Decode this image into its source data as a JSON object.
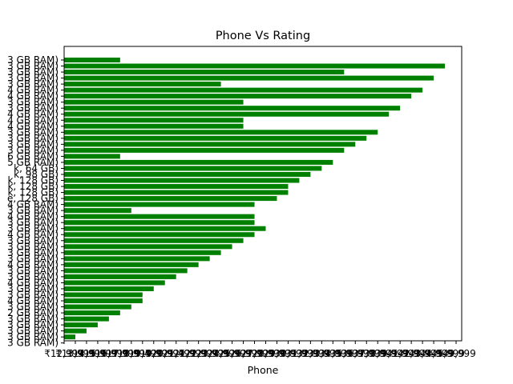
{
  "chart_data": {
    "type": "bar",
    "orientation": "horizontal",
    "title": "Phone Vs Rating",
    "xlabel": "Phone",
    "ylabel": "",
    "bar_color": "#008000",
    "grid": false,
    "y_tick_labels": [
      "3 GB RAM)",
      "3 GB RAM)",
      "3 GB RAM)",
      "3 GB RAM)",
      "3 GB RAM)",
      "4 GB RAM)",
      "4 GB RAM)",
      "3 GB RAM)",
      "3 GB RAM)",
      "4 GB RAM)",
      "4 GB RAM)",
      "4 GB RAM)",
      "3 GB RAM)",
      "3 GB RAM)",
      "3 GB RAM)",
      "3 GB RAM)",
      "6 GB RAM)",
      "5 GB RAM)",
      "k, 64 GB)",
      "k, 98 GB)",
      "k, 128 GB)",
      "k, 128 GB)",
      "k, 128 GB)",
      "e, 128 GB)",
      "4 GB RAM)",
      "3 GB RAM)",
      "4 GB RAM)",
      "3 GB RAM)",
      "3 GB RAM)",
      "4 GB RAM)",
      "3 GB RAM)",
      "3 GB RAM)",
      "3 GB RAM)",
      "3 GB RAM)",
      "4 GB RAM)",
      "3 GB RAM)",
      "3 GB RAM)",
      "4 GB RAM)",
      "3 GB RAM)",
      "3 GB RAM)",
      "4 GB RAM)",
      "3 GB RAM)",
      "2 GB RAM)",
      "3 GB RAM)",
      "3 GB RAM)",
      "3 GB RAM)",
      "3 GB RAM)",
      "3 GB RAM)"
    ],
    "values": [
      5,
      34,
      25,
      33,
      14,
      32,
      31,
      16,
      30,
      29,
      16,
      16,
      28,
      27,
      26,
      25,
      5,
      24,
      23,
      22,
      21,
      20,
      20,
      19,
      17,
      6,
      17,
      17,
      18,
      17,
      16,
      15,
      14,
      13,
      12,
      11,
      10,
      9,
      8,
      7,
      7,
      6,
      5,
      4,
      3,
      2,
      1,
      0
    ],
    "x_tick_labels": [
      "₹12,999",
      "₹13,999",
      "₹14,999",
      "₹15,999",
      "₹16,999",
      "₹17,999",
      "₹18,999",
      "₹19,499",
      "₹19,999",
      "₹20,999",
      "₹21,499",
      "₹21,999",
      "₹22,999",
      "₹23,999",
      "₹24,999",
      "₹25,999",
      "₹26,999",
      "₹27,999",
      "₹28,999",
      "₹29,999",
      "₹30,999",
      "₹31,999",
      "₹32,999",
      "₹33,999",
      "₹34,999",
      "₹35,999",
      "₹36,999",
      "₹37,999",
      "₹38,999",
      "₹39,999",
      "₹41,999",
      "₹42,999",
      "₹43,999",
      "₹44,999",
      "₹45,999",
      "₹49,999"
    ],
    "xlim": [
      0,
      35.5
    ]
  }
}
